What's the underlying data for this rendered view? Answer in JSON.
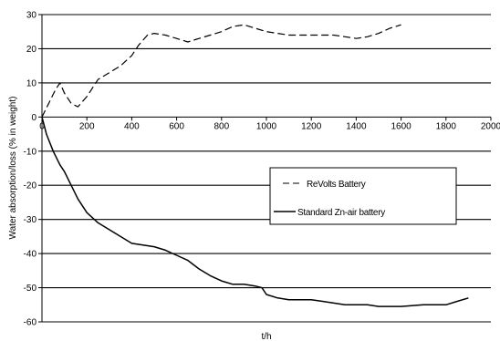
{
  "chart_data": {
    "type": "line",
    "title": "",
    "xlabel": "t/h",
    "ylabel": "Water absorption/loss (% in weight)",
    "xlim": [
      0,
      2000
    ],
    "ylim": [
      -60,
      30
    ],
    "x_ticks": [
      "0",
      "200",
      "400",
      "600",
      "800",
      "1000",
      "1200",
      "1400",
      "1600",
      "1800",
      "2000"
    ],
    "y_ticks": [
      "30",
      "20",
      "10",
      "0",
      "-10",
      "-20",
      "-30",
      "-40",
      "-50",
      "-60"
    ],
    "grid": {
      "horizontal": true,
      "vertical": false
    },
    "legend_position": "right",
    "series": [
      {
        "name": "ReVolts Battery",
        "style": "dashed",
        "color": "#000000",
        "points": [
          [
            0,
            0
          ],
          [
            30,
            4
          ],
          [
            60,
            8
          ],
          [
            80,
            10
          ],
          [
            100,
            7
          ],
          [
            130,
            4
          ],
          [
            160,
            3
          ],
          [
            200,
            6
          ],
          [
            250,
            11
          ],
          [
            300,
            13
          ],
          [
            350,
            15
          ],
          [
            400,
            18
          ],
          [
            430,
            21
          ],
          [
            470,
            24
          ],
          [
            500,
            24.5
          ],
          [
            550,
            24
          ],
          [
            600,
            23
          ],
          [
            650,
            22
          ],
          [
            700,
            23
          ],
          [
            750,
            24
          ],
          [
            800,
            25
          ],
          [
            850,
            26.5
          ],
          [
            900,
            27
          ],
          [
            950,
            26
          ],
          [
            1000,
            25
          ],
          [
            1050,
            24.5
          ],
          [
            1100,
            24
          ],
          [
            1150,
            24
          ],
          [
            1200,
            24
          ],
          [
            1250,
            24
          ],
          [
            1300,
            24
          ],
          [
            1350,
            23.5
          ],
          [
            1400,
            23
          ],
          [
            1450,
            23.5
          ],
          [
            1500,
            24.5
          ],
          [
            1550,
            26
          ],
          [
            1600,
            27
          ]
        ]
      },
      {
        "name": "Standard Zn-air battery",
        "style": "solid",
        "color": "#000000",
        "points": [
          [
            0,
            0
          ],
          [
            20,
            -5
          ],
          [
            50,
            -10
          ],
          [
            80,
            -14
          ],
          [
            100,
            -16
          ],
          [
            130,
            -20
          ],
          [
            160,
            -24
          ],
          [
            200,
            -28
          ],
          [
            250,
            -31
          ],
          [
            300,
            -33
          ],
          [
            350,
            -35
          ],
          [
            400,
            -37
          ],
          [
            450,
            -37.5
          ],
          [
            500,
            -38
          ],
          [
            550,
            -39
          ],
          [
            600,
            -40.5
          ],
          [
            650,
            -42
          ],
          [
            700,
            -44.5
          ],
          [
            750,
            -46.5
          ],
          [
            800,
            -48
          ],
          [
            850,
            -49
          ],
          [
            900,
            -49
          ],
          [
            950,
            -49.5
          ],
          [
            980,
            -50
          ],
          [
            1000,
            -52
          ],
          [
            1050,
            -53
          ],
          [
            1100,
            -53.5
          ],
          [
            1150,
            -53.5
          ],
          [
            1200,
            -53.5
          ],
          [
            1250,
            -54
          ],
          [
            1300,
            -54.5
          ],
          [
            1350,
            -55
          ],
          [
            1400,
            -55
          ],
          [
            1450,
            -55
          ],
          [
            1500,
            -55.5
          ],
          [
            1550,
            -55.5
          ],
          [
            1600,
            -55.5
          ],
          [
            1700,
            -55
          ],
          [
            1800,
            -55
          ],
          [
            1850,
            -54
          ],
          [
            1900,
            -53
          ]
        ]
      }
    ]
  }
}
